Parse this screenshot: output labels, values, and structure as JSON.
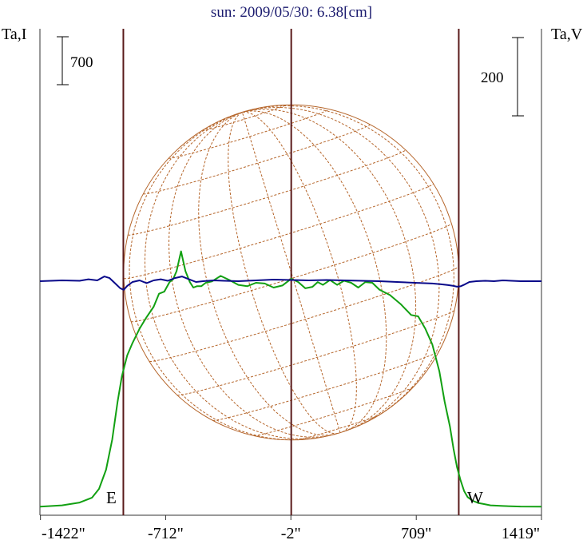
{
  "title": "sun: 2009/05/30: 6.38[cm]",
  "left_axis_label": "Ta,I",
  "right_axis_label": "Ta,V",
  "left_scale_bar": "700",
  "right_scale_bar": "200",
  "marker_east": "E",
  "marker_west": "W",
  "colors": {
    "title": "#1a1a6e",
    "intensity": "#12a012",
    "polarization": "#0a0a8a",
    "limb_lines": "#5a1a1a",
    "solar_disk": "#b5652a",
    "axis": "#333333"
  },
  "chart_data": {
    "type": "line",
    "xlabel": "",
    "ylabel": "",
    "x_unit": "arcsec",
    "xlim": [
      -1425,
      1419
    ],
    "x_ticks": [
      {
        "value": -1422,
        "label": "-1422\""
      },
      {
        "value": -712,
        "label": "-712\""
      },
      {
        "value": -2,
        "label": "-2\""
      },
      {
        "value": 709,
        "label": "709\""
      },
      {
        "value": 1419,
        "label": "1419\""
      }
    ],
    "vertical_lines": [
      -952,
      0,
      950
    ],
    "series": [
      {
        "name": "Ta,I",
        "x": [
          -1425,
          -1300,
          -1200,
          -1130,
          -1090,
          -1050,
          -1015,
          -985,
          -960,
          -930,
          -900,
          -860,
          -820,
          -780,
          -750,
          -720,
          -690,
          -670,
          -650,
          -625,
          -600,
          -575,
          -555,
          -535,
          -510,
          -485,
          -450,
          -400,
          -350,
          -300,
          -250,
          -200,
          -150,
          -100,
          -50,
          0,
          40,
          80,
          120,
          150,
          180,
          220,
          260,
          300,
          340,
          380,
          420,
          460,
          500,
          560,
          620,
          680,
          720,
          760,
          800,
          840,
          870,
          900,
          920,
          940,
          960,
          980,
          1000,
          1030,
          1060,
          1090,
          1130,
          1200,
          1300,
          1419
        ],
        "y": [
          20,
          40,
          80,
          150,
          280,
          560,
          1000,
          1550,
          1930,
          2230,
          2410,
          2620,
          2790,
          2940,
          3130,
          3160,
          3300,
          3340,
          3460,
          3750,
          3460,
          3300,
          3220,
          3240,
          3240,
          3290,
          3310,
          3390,
          3330,
          3260,
          3240,
          3290,
          3280,
          3220,
          3250,
          3350,
          3300,
          3210,
          3230,
          3300,
          3260,
          3330,
          3260,
          3320,
          3290,
          3220,
          3300,
          3290,
          3190,
          3110,
          2980,
          2820,
          2800,
          2620,
          2390,
          2000,
          1550,
          1190,
          870,
          600,
          410,
          250,
          160,
          105,
          75,
          60,
          40,
          30,
          22,
          20
        ],
        "y_unit_per_bar": 700
      },
      {
        "name": "Ta,V",
        "x": [
          -1425,
          -1300,
          -1200,
          -1150,
          -1100,
          -1060,
          -1030,
          -1000,
          -970,
          -950,
          -930,
          -900,
          -860,
          -820,
          -780,
          -740,
          -700,
          -660,
          -620,
          -580,
          -540,
          -500,
          -440,
          -380,
          -300,
          -200,
          -100,
          0,
          100,
          200,
          300,
          400,
          500,
          600,
          700,
          800,
          850,
          890,
          920,
          940,
          960,
          985,
          1010,
          1050,
          1100,
          1150,
          1200,
          1300,
          1419
        ],
        "y": [
          0,
          2,
          1,
          5,
          2,
          12,
          8,
          -5,
          -18,
          -22,
          -12,
          -2,
          2,
          -5,
          2,
          5,
          1,
          8,
          12,
          5,
          -2,
          0,
          2,
          1,
          0,
          2,
          4,
          3,
          2,
          3,
          2,
          1,
          0,
          -2,
          -4,
          -6,
          -8,
          -10,
          -12,
          -14,
          -13,
          -8,
          -2,
          0,
          1,
          0,
          2,
          0,
          0
        ],
        "y_unit_per_bar": 200
      }
    ],
    "overlay": "solar disk with heliographic grid, radius ≈ 950 arcsec, centered at 0"
  }
}
